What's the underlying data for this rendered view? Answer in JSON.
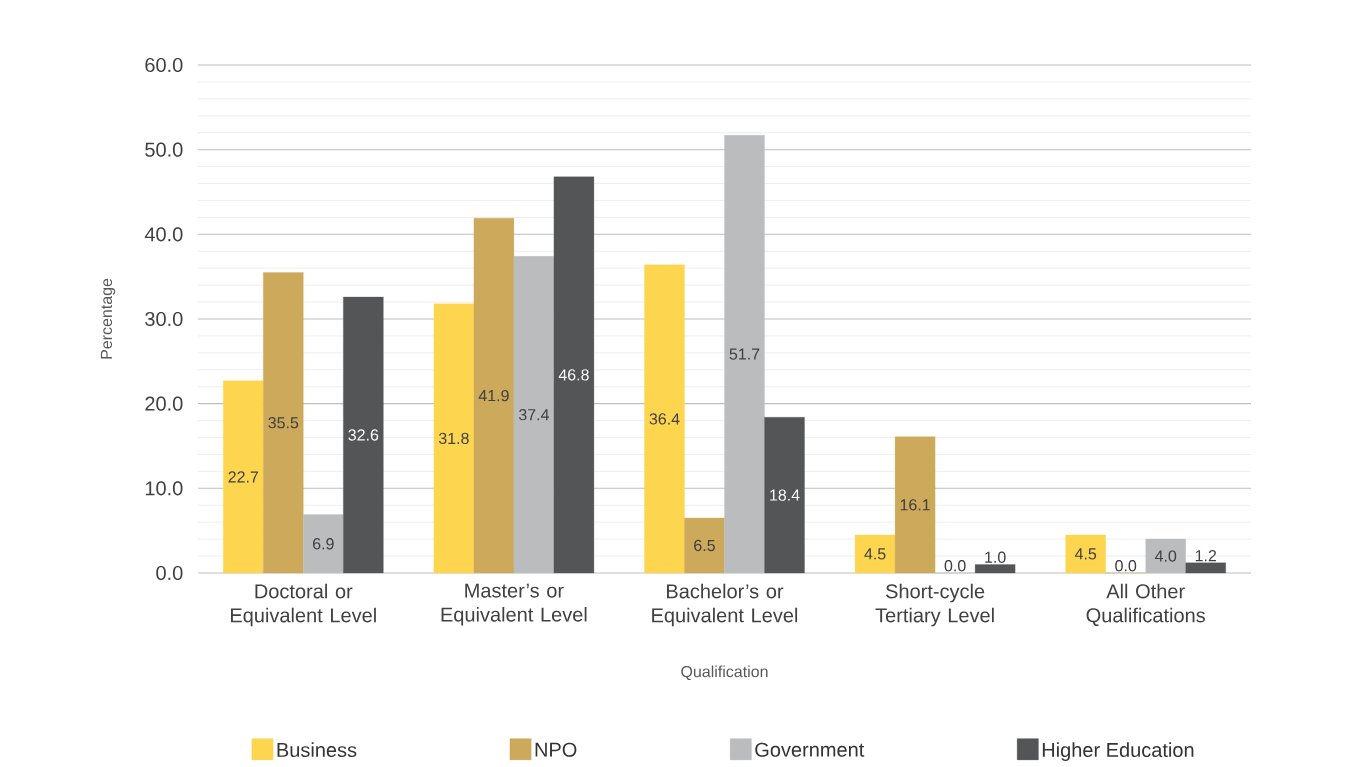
{
  "chart_data": {
    "type": "bar",
    "xlabel": "Qualification",
    "ylabel": "Percentage",
    "categories": [
      "Doctoral or Equivalent Level",
      "Master’s or Equivalent Level",
      "Bachelor’s or Equivalent Level",
      "Short-cycle Tertiary Level",
      "All Other Qualifications"
    ],
    "series": [
      {
        "name": "Business",
        "color": "#fdd54f",
        "values": [
          22.7,
          31.8,
          36.4,
          4.5,
          4.5
        ],
        "value_labels": [
          "22.7",
          "31.8",
          "36.4",
          "4.5",
          "4.5"
        ]
      },
      {
        "name": "NPO",
        "color": "#cda95b",
        "values": [
          35.5,
          41.9,
          6.5,
          16.1,
          0.0
        ],
        "value_labels": [
          "35.5",
          "41.9",
          "6.5",
          "16.1",
          "0.0"
        ]
      },
      {
        "name": "Government",
        "color": "#bbbcbe",
        "values": [
          6.9,
          37.4,
          51.7,
          0.0,
          4.0
        ],
        "value_labels": [
          "6.9",
          "37.4",
          "51.7",
          "0.0",
          "4.0"
        ]
      },
      {
        "name": "Higher Education",
        "color": "#545557",
        "values": [
          32.6,
          46.8,
          18.4,
          1.0,
          1.2
        ],
        "value_labels": [
          "32.6",
          "46.8",
          "18.4",
          "1.0",
          "1.2"
        ]
      }
    ],
    "ylim": [
      0,
      60
    ],
    "yticks": [
      {
        "value": 0,
        "label": "0.0"
      },
      {
        "value": 10,
        "label": "10.0"
      },
      {
        "value": 20,
        "label": "20.0"
      },
      {
        "value": 30,
        "label": "30.0"
      },
      {
        "value": 40,
        "label": "40.0"
      },
      {
        "value": 50,
        "label": "50.0"
      },
      {
        "value": 60,
        "label": "60.0"
      }
    ],
    "grid": "y",
    "legend": "bottom"
  }
}
